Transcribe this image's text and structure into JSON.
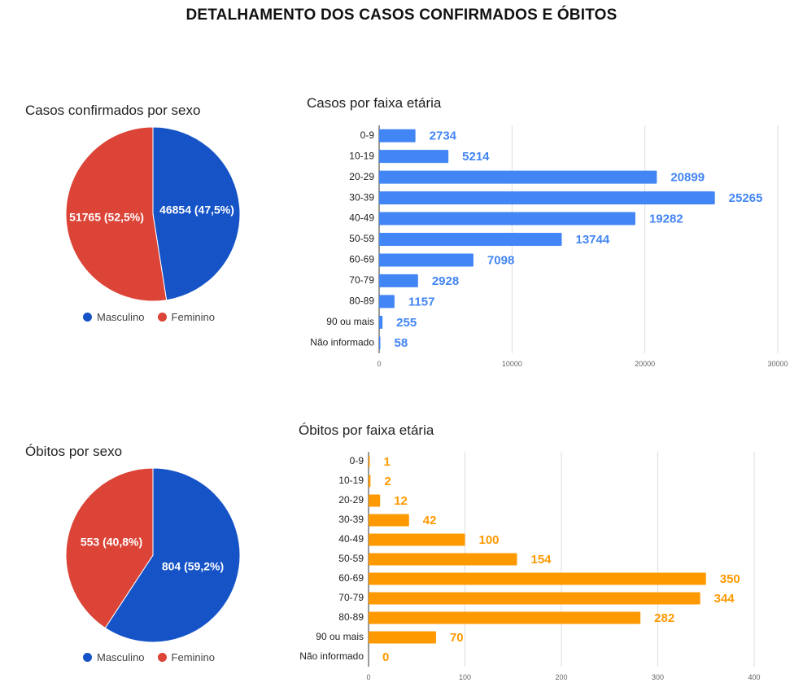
{
  "page": {
    "title": "DETALHAMENTO DOS CASOS CONFIRMADOS E ÓBITOS"
  },
  "colors": {
    "masculino": "#1553c7",
    "feminino": "#db4437",
    "casos_bar": "#4285f4",
    "obitos_bar": "#ff9900"
  },
  "chart_data": [
    {
      "id": "casos-sexo",
      "type": "pie",
      "title": "Casos confirmados por sexo",
      "slices": [
        {
          "label": "Masculino",
          "value": 46854,
          "text": "46854 (47,5%)",
          "color": "#1553c7"
        },
        {
          "label": "Feminino",
          "value": 51765,
          "text": "51765 (52,5%)",
          "color": "#db4437"
        }
      ],
      "legend": [
        "Masculino",
        "Feminino"
      ],
      "legend_position": "bottom"
    },
    {
      "id": "casos-faixa",
      "type": "bar",
      "orientation": "horizontal",
      "title": "Casos por faixa etária",
      "categories": [
        "0-9",
        "10-19",
        "20-29",
        "30-39",
        "40-49",
        "50-59",
        "60-69",
        "70-79",
        "80-89",
        "90 ou mais",
        "Não informado"
      ],
      "values": [
        2734,
        5214,
        20899,
        25265,
        19282,
        13744,
        7098,
        2928,
        1157,
        255,
        58
      ],
      "xlim": [
        0,
        30000
      ],
      "xticks": [
        0,
        10000,
        20000,
        30000
      ],
      "color": "#4285f4",
      "grid": true
    },
    {
      "id": "obitos-sexo",
      "type": "pie",
      "title": "Óbitos por sexo",
      "slices": [
        {
          "label": "Masculino",
          "value": 804,
          "text": "804 (59,2%)",
          "color": "#1553c7"
        },
        {
          "label": "Feminino",
          "value": 553,
          "text": "553 (40,8%)",
          "color": "#db4437"
        }
      ],
      "legend": [
        "Masculino",
        "Feminino"
      ],
      "legend_position": "bottom"
    },
    {
      "id": "obitos-faixa",
      "type": "bar",
      "orientation": "horizontal",
      "title": "Óbitos por faixa etária",
      "categories": [
        "0-9",
        "10-19",
        "20-29",
        "30-39",
        "40-49",
        "50-59",
        "60-69",
        "70-79",
        "80-89",
        "90 ou mais",
        "Não informado"
      ],
      "values": [
        1,
        2,
        12,
        42,
        100,
        154,
        350,
        344,
        282,
        70,
        0
      ],
      "xlim": [
        0,
        400
      ],
      "xticks": [
        0,
        100,
        200,
        300,
        400
      ],
      "color": "#ff9900",
      "grid": true
    }
  ]
}
